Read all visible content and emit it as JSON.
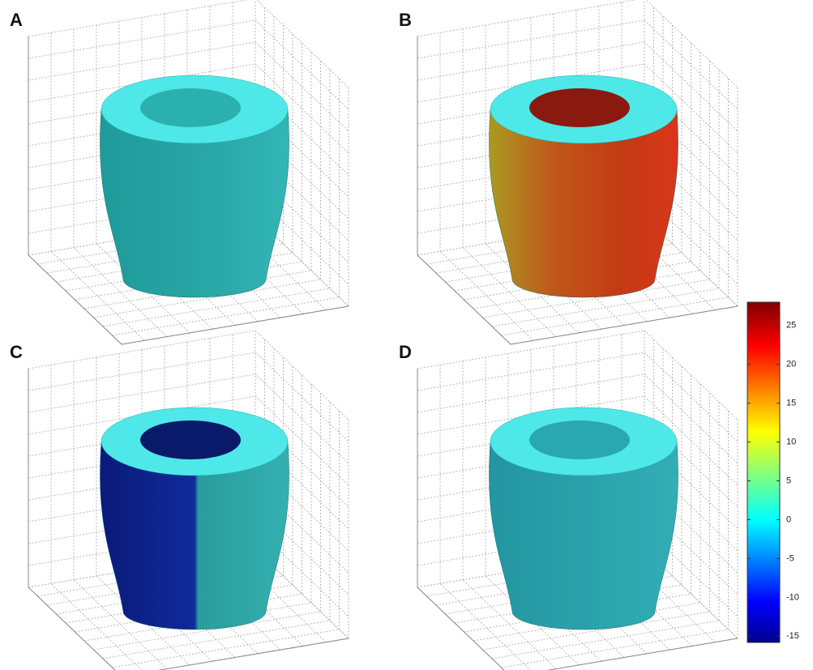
{
  "panels": [
    {
      "label": "A"
    },
    {
      "label": "B"
    },
    {
      "label": "C"
    },
    {
      "label": "D"
    }
  ],
  "colorbar": {
    "lim": [
      -15.8,
      28
    ],
    "ticks": [
      -15,
      -10,
      -5,
      0,
      5,
      10,
      15,
      20,
      25
    ]
  }
}
